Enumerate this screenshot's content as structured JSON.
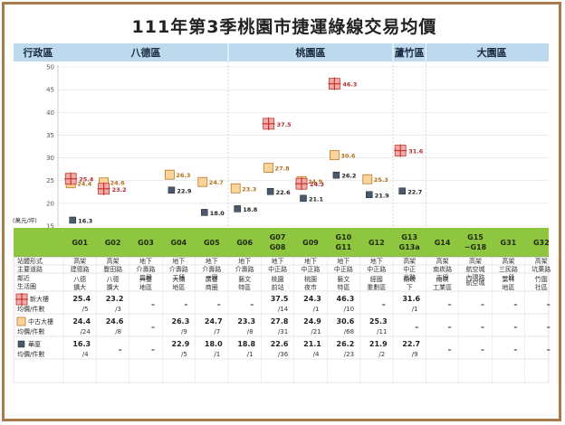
{
  "title": "111年第3季桃園市捷運綠線交易均價",
  "header": {
    "label": "行政區",
    "districts": [
      "八德區",
      "桃園區",
      "蘆竹區",
      "大園區"
    ]
  },
  "table": {
    "row_labels": {
      "type": "站體形式",
      "road": "主要道路",
      "area": [
        "鄰近",
        "生活圈"
      ],
      "new": [
        "新大樓",
        "均價/件數"
      ],
      "mid": [
        "中古大樓",
        "均價/件數"
      ],
      "apt": [
        "華廈",
        "均價/件數"
      ]
    },
    "types": [
      "高架",
      "高架",
      "地下",
      "地下",
      "地下",
      "地下",
      "地下",
      "地下",
      "地下",
      "地下",
      "高架",
      "高架",
      "高架",
      "高架",
      "高架"
    ],
    "roads": [
      [
        "建德路"
      ],
      [
        "豐田路"
      ],
      [
        "介壽路",
        "二段"
      ],
      [
        "介壽路",
        "二段"
      ],
      [
        "介壽路",
        "一段"
      ],
      [
        "介壽路"
      ],
      [
        "中正路"
      ],
      [
        "中正路"
      ],
      [
        "中正路"
      ],
      [
        "中正路"
      ],
      [
        "中正",
        "北路"
      ],
      [
        "南崁路",
        "二段"
      ],
      [
        "航空城",
        "內環路"
      ],
      [
        "三民路",
        "一段"
      ],
      [
        "坑菓路"
      ]
    ],
    "areas": [
      [
        "八德",
        "擴大"
      ],
      [
        "八德",
        "擴大"
      ],
      [
        "興豐",
        "地區"
      ],
      [
        "大湳",
        "地區"
      ],
      [
        "廣豐",
        "商圈"
      ],
      [
        "藝文",
        "特區"
      ],
      [
        "桃園",
        "前站"
      ],
      [
        "桃園",
        "夜市"
      ],
      [
        "藝文",
        "特區"
      ],
      [
        "經國",
        "重劃區"
      ],
      [
        "南崁",
        "下"
      ],
      [
        "南崁",
        "工業區"
      ],
      [
        "航空城"
      ],
      [
        "葉林",
        "地區"
      ],
      [
        "竹圍",
        "社區"
      ]
    ],
    "new_counts": [
      "/5",
      "/3",
      "",
      "",
      "",
      "",
      "/14",
      "/1",
      "/10",
      "",
      "/1",
      "",
      "",
      "",
      ""
    ],
    "mid_counts": [
      "/24",
      "/8",
      "",
      "/9",
      "/7",
      "/8",
      "/31",
      "/21",
      "/68",
      "/11",
      "",
      "",
      "",
      "",
      ""
    ],
    "apt_counts": [
      "/4",
      "",
      "",
      "/5",
      "/1",
      "/1",
      "/36",
      "/4",
      "/23",
      "/2",
      "/9",
      "",
      "",
      "",
      ""
    ],
    "dash": "–"
  },
  "legend": {
    "new": "新大樓",
    "mid": "中古大樓",
    "apt": "華廈"
  },
  "colors": {
    "new_fill": "#f1a9a9",
    "new_line": "#c0392b",
    "mid_fill": "#fcd49a",
    "mid_line": "#b9792a",
    "apt_fill": "#4a5a6e",
    "station_bar": "#8ec63f",
    "header_bar": "#bcd9ee",
    "frame": "#a87a4c"
  },
  "chart_data": {
    "type": "scatter",
    "title": "111年第3季桃園市捷運綠線交易均價",
    "ylabel": "(萬元/坪)",
    "ylim": [
      15,
      50
    ],
    "yticks": [
      15,
      20,
      25,
      30,
      35,
      40,
      45,
      50
    ],
    "categories": [
      "G01",
      "G02",
      "G03",
      "G04",
      "G05",
      "G06",
      "G07\nG08",
      "G09",
      "G10\nG11",
      "G12",
      "G13\nG13a",
      "G14",
      "G15\n~G18",
      "G31",
      "G32"
    ],
    "series": [
      {
        "name": "新大樓",
        "values": [
          25.4,
          23.2,
          null,
          null,
          null,
          null,
          37.5,
          24.3,
          46.3,
          null,
          31.6,
          null,
          null,
          null,
          null
        ]
      },
      {
        "name": "中古大樓",
        "values": [
          24.4,
          24.6,
          null,
          26.3,
          24.7,
          23.3,
          27.8,
          24.9,
          30.6,
          25.3,
          null,
          null,
          null,
          null,
          null
        ]
      },
      {
        "name": "華廈",
        "values": [
          16.3,
          null,
          null,
          22.9,
          18.0,
          18.8,
          22.6,
          21.1,
          26.2,
          21.9,
          22.7,
          null,
          null,
          null,
          null
        ]
      }
    ]
  }
}
